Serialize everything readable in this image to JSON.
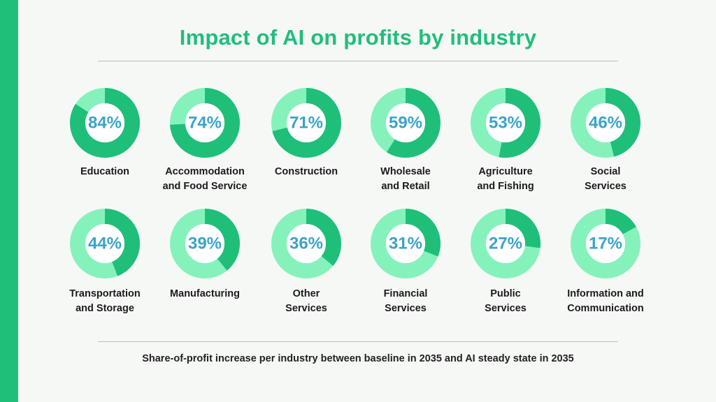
{
  "title": "Impact of AI on profits by industry",
  "footnote": "Share-of-profit increase per industry between baseline in 2035 and AI steady state in 2035",
  "colors": {
    "accent": "#1fbf7a",
    "filled": "#1fbf7a",
    "remainder": "#86f2bb",
    "percent_text": "#3aa3c9"
  },
  "chart_data": {
    "type": "pie",
    "unit": "%",
    "items": [
      {
        "label": [
          "Education"
        ],
        "value": 84,
        "display": "84%"
      },
      {
        "label": [
          "Accommodation",
          "and Food Service"
        ],
        "value": 74,
        "display": "74%"
      },
      {
        "label": [
          "Construction"
        ],
        "value": 71,
        "display": "71%"
      },
      {
        "label": [
          "Wholesale",
          "and Retail"
        ],
        "value": 59,
        "display": "59%"
      },
      {
        "label": [
          "Agriculture",
          "and Fishing"
        ],
        "value": 53,
        "display": "53%"
      },
      {
        "label": [
          "Social",
          "Services"
        ],
        "value": 46,
        "display": "46%"
      },
      {
        "label": [
          "Transportation",
          "and Storage"
        ],
        "value": 44,
        "display": "44%"
      },
      {
        "label": [
          "Manufacturing"
        ],
        "value": 39,
        "display": "39%"
      },
      {
        "label": [
          "Other",
          "Services"
        ],
        "value": 36,
        "display": "36%"
      },
      {
        "label": [
          "Financial",
          "Services"
        ],
        "value": 31,
        "display": "31%"
      },
      {
        "label": [
          "Public",
          "Services"
        ],
        "value": 27,
        "display": "27%"
      },
      {
        "label": [
          "Information and",
          "Communication"
        ],
        "value": 17,
        "display": "17%"
      }
    ]
  }
}
